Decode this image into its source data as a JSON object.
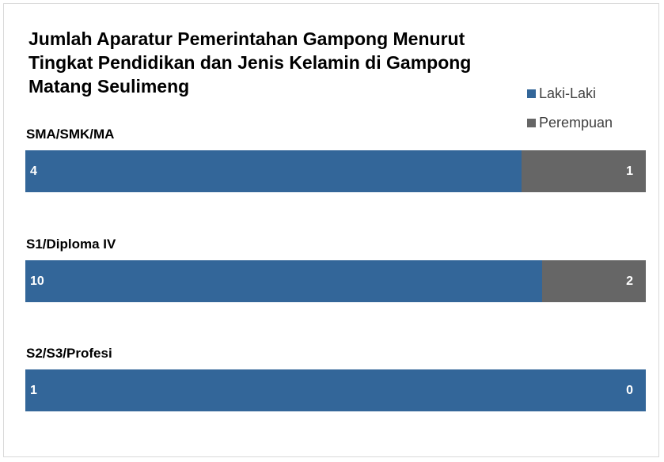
{
  "chart_data": {
    "type": "bar",
    "stacked": true,
    "normalized": true,
    "orientation": "horizontal",
    "title": "Jumlah Aparatur Pemerintahan Gampong Menurut Tingkat Pendidikan dan Jenis Kelamin di Gampong Matang Seulimeng",
    "categories": [
      "SMA/SMK/MA",
      "S1/Diploma IV",
      "S2/S3/Profesi"
    ],
    "series": [
      {
        "name": "Laki-Laki",
        "color": "#336699",
        "values": [
          4,
          10,
          1
        ]
      },
      {
        "name": "Perempuan",
        "color": "#666666",
        "values": [
          1,
          2,
          0
        ]
      }
    ],
    "legend": "top-right"
  }
}
